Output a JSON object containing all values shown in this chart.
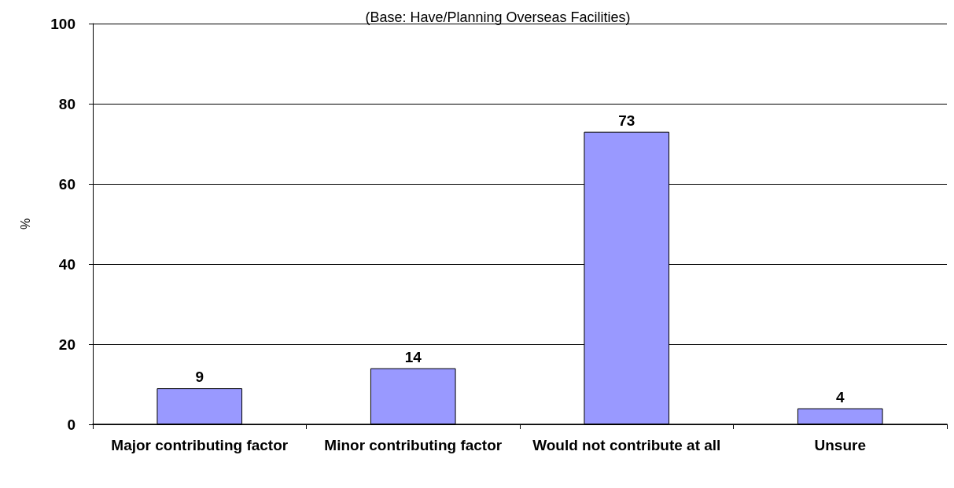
{
  "chart_data": {
    "type": "bar",
    "subtitle": "(Base: Have/Planning Overseas Facilities)",
    "ylabel": "%",
    "categories": [
      "Major contributing factor",
      "Minor contributing factor",
      "Would not contribute at all",
      "Unsure"
    ],
    "values": [
      9,
      14,
      73,
      4
    ],
    "color": "#9999ff",
    "ylim": [
      0,
      100
    ],
    "yticks": [
      0,
      20,
      40,
      60,
      80,
      100
    ],
    "grid": "y",
    "data_labels": true
  }
}
